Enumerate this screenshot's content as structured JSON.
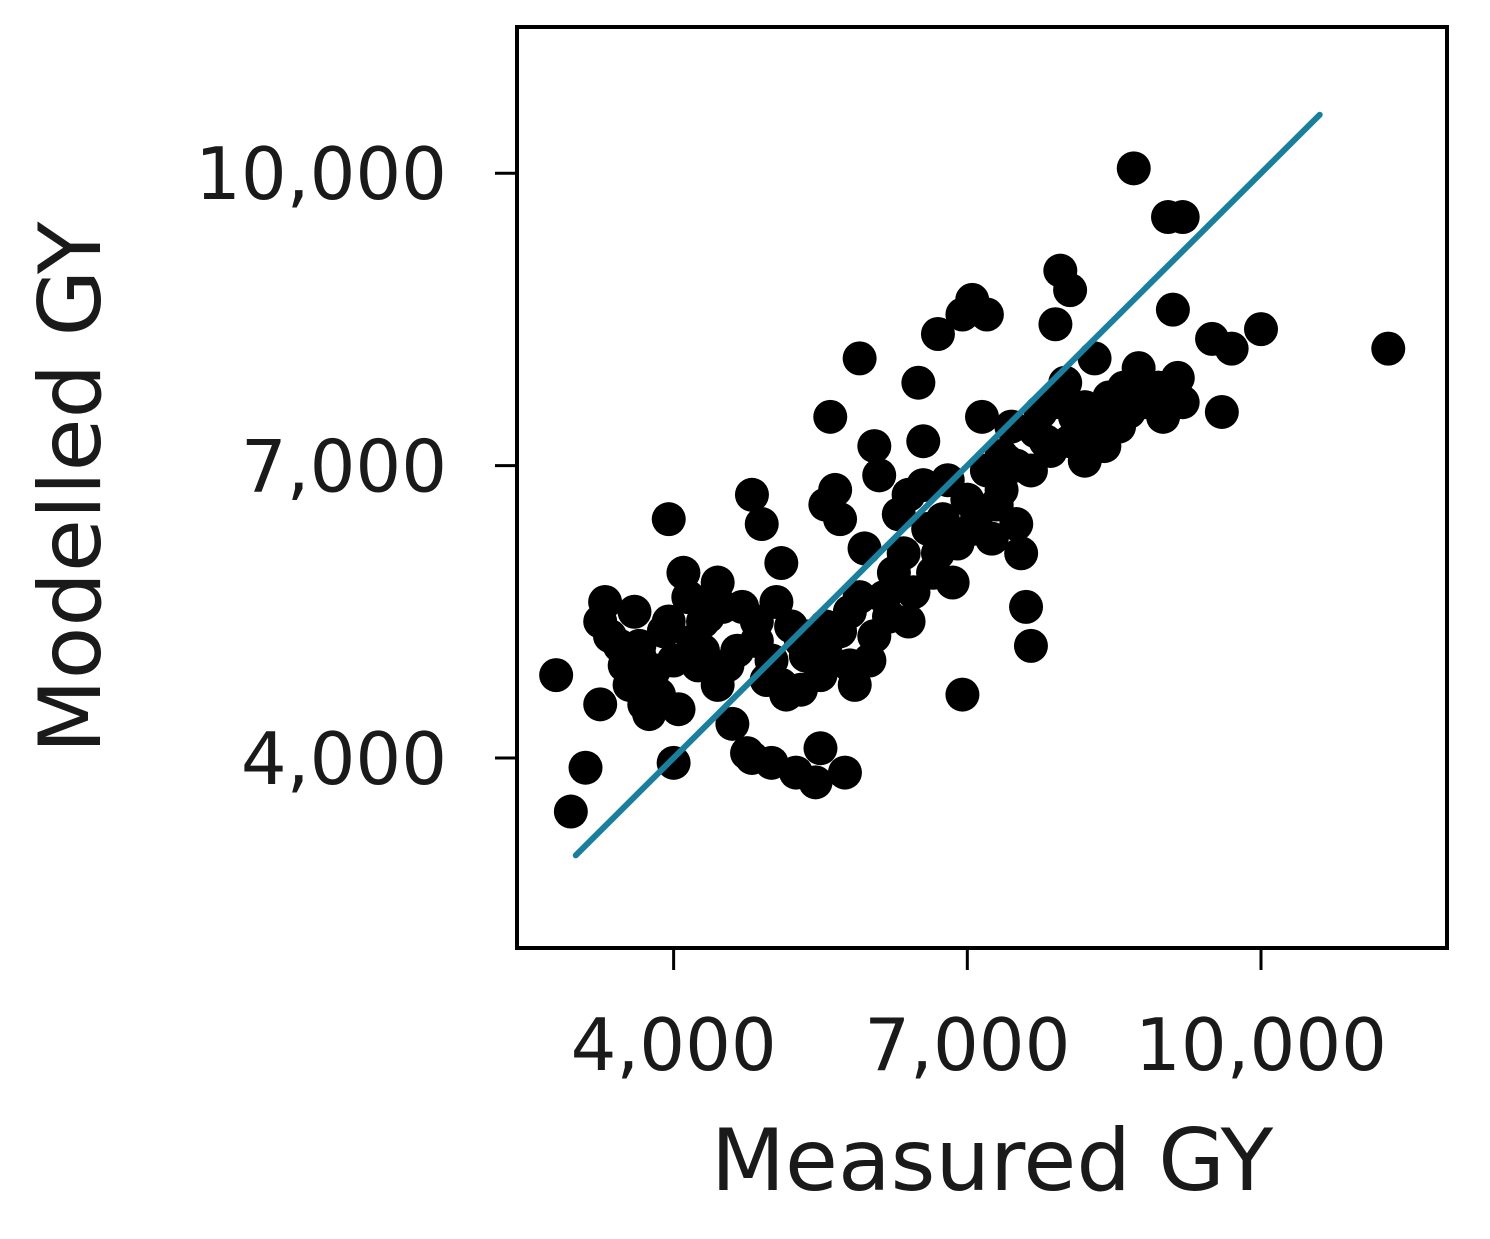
{
  "chart_data": {
    "type": "scatter",
    "title": "",
    "xlabel": "Measured GY",
    "ylabel": "Modelled GY",
    "xlim": [
      2400,
      11900
    ],
    "ylim": [
      2050,
      11500
    ],
    "x_ticks": [
      {
        "value": 4000,
        "label": "4,000"
      },
      {
        "value": 7000,
        "label": "7,000"
      },
      {
        "value": 10000,
        "label": "10,000"
      }
    ],
    "y_ticks": [
      {
        "value": 4000,
        "label": "4,000"
      },
      {
        "value": 7000,
        "label": "7,000"
      },
      {
        "value": 10000,
        "label": "10,000"
      }
    ],
    "grid": false,
    "legend": "none",
    "point_color": "#000000",
    "fit_line": {
      "color": "#1a7f9c",
      "x": [
        3000,
        10600
      ],
      "y": [
        3000,
        10600
      ]
    },
    "series": [
      {
        "points": [
          [
            2800,
            4850
          ],
          [
            2950,
            3450
          ],
          [
            3100,
            3900
          ],
          [
            3250,
            4550
          ],
          [
            3250,
            5400
          ],
          [
            3300,
            5600
          ],
          [
            3350,
            5250
          ],
          [
            3450,
            5150
          ],
          [
            3500,
            4950
          ],
          [
            3550,
            4750
          ],
          [
            3600,
            5500
          ],
          [
            3650,
            5050
          ],
          [
            3700,
            4750
          ],
          [
            3700,
            4550
          ],
          [
            3750,
            4450
          ],
          [
            3800,
            4900
          ],
          [
            3850,
            4650
          ],
          [
            3900,
            5300
          ],
          [
            3950,
            6450
          ],
          [
            4000,
            5000
          ],
          [
            4000,
            3950
          ],
          [
            4050,
            4500
          ],
          [
            4100,
            5900
          ],
          [
            4150,
            5650
          ],
          [
            4200,
            5200
          ],
          [
            4250,
            4950
          ],
          [
            4300,
            5100
          ],
          [
            4350,
            5450
          ],
          [
            4400,
            5600
          ],
          [
            4450,
            4750
          ],
          [
            4500,
            5550
          ],
          [
            4550,
            4950
          ],
          [
            4600,
            4350
          ],
          [
            4650,
            5100
          ],
          [
            4700,
            5550
          ],
          [
            4750,
            4050
          ],
          [
            4800,
            6700
          ],
          [
            4800,
            4000
          ],
          [
            4850,
            5400
          ],
          [
            4900,
            6400
          ],
          [
            4950,
            4800
          ],
          [
            5000,
            5000
          ],
          [
            5000,
            3950
          ],
          [
            5050,
            5600
          ],
          [
            5100,
            4750
          ],
          [
            5150,
            4650
          ],
          [
            5200,
            5350
          ],
          [
            5250,
            3850
          ],
          [
            5300,
            4700
          ],
          [
            5350,
            5050
          ],
          [
            5400,
            5250
          ],
          [
            5450,
            3750
          ],
          [
            5500,
            4100
          ],
          [
            5500,
            4850
          ],
          [
            5550,
            5100
          ],
          [
            5600,
            7500
          ],
          [
            5650,
            6750
          ],
          [
            5700,
            6450
          ],
          [
            5700,
            5300
          ],
          [
            5750,
            3850
          ],
          [
            5800,
            5500
          ],
          [
            5800,
            4950
          ],
          [
            5850,
            4750
          ],
          [
            5900,
            5650
          ],
          [
            5950,
            6150
          ],
          [
            6000,
            5000
          ],
          [
            6050,
            7200
          ],
          [
            6100,
            6900
          ],
          [
            6150,
            5650
          ],
          [
            6200,
            5450
          ],
          [
            6250,
            5900
          ],
          [
            6300,
            6500
          ],
          [
            6350,
            6100
          ],
          [
            6400,
            5400
          ],
          [
            6450,
            5700
          ],
          [
            6500,
            7850
          ],
          [
            6550,
            6800
          ],
          [
            6600,
            6350
          ],
          [
            6650,
            5900
          ],
          [
            6700,
            6100
          ],
          [
            6750,
            6450
          ],
          [
            6800,
            6850
          ],
          [
            6850,
            5800
          ],
          [
            6900,
            6200
          ],
          [
            6950,
            4650
          ],
          [
            7000,
            6650
          ],
          [
            7050,
            6350
          ],
          [
            7100,
            6500
          ],
          [
            7150,
            7500
          ],
          [
            7200,
            6950
          ],
          [
            7250,
            6250
          ],
          [
            7300,
            6600
          ],
          [
            7350,
            6750
          ],
          [
            7400,
            7050
          ],
          [
            7450,
            7400
          ],
          [
            7500,
            6400
          ],
          [
            7550,
            6100
          ],
          [
            7600,
            5550
          ],
          [
            7650,
            5150
          ],
          [
            7700,
            7350
          ],
          [
            7750,
            7550
          ],
          [
            7800,
            7250
          ],
          [
            7850,
            7150
          ],
          [
            7900,
            7650
          ],
          [
            8000,
            7850
          ],
          [
            8050,
            7250
          ],
          [
            8100,
            7500
          ],
          [
            8150,
            7300
          ],
          [
            8200,
            7600
          ],
          [
            8250,
            7150
          ],
          [
            8300,
            8100
          ],
          [
            8350,
            7400
          ],
          [
            8400,
            7200
          ],
          [
            8450,
            7700
          ],
          [
            8500,
            7550
          ],
          [
            8550,
            7400
          ],
          [
            8600,
            7800
          ],
          [
            8650,
            7550
          ],
          [
            8700,
            10050
          ],
          [
            8750,
            7900
          ],
          [
            8800,
            7650
          ],
          [
            8900,
            7700
          ],
          [
            8950,
            7800
          ],
          [
            9000,
            7500
          ],
          [
            9050,
            9550
          ],
          [
            9100,
            8600
          ],
          [
            9150,
            7900
          ],
          [
            9200,
            7650
          ],
          [
            9500,
            8300
          ],
          [
            9600,
            7550
          ],
          [
            9700,
            8200
          ],
          [
            10000,
            8400
          ],
          [
            11300,
            8200
          ],
          [
            5300,
            5200
          ],
          [
            6850,
            6300
          ],
          [
            7350,
            7100
          ],
          [
            8200,
            7050
          ],
          [
            7050,
            8700
          ],
          [
            6950,
            8550
          ],
          [
            6700,
            8350
          ],
          [
            7200,
            8550
          ],
          [
            5550,
            6600
          ],
          [
            4450,
            5800
          ],
          [
            3650,
            5150
          ],
          [
            5900,
            8100
          ],
          [
            7900,
            8450
          ],
          [
            8050,
            8800
          ],
          [
            9200,
            9550
          ],
          [
            4850,
            5200
          ],
          [
            6400,
            6700
          ],
          [
            6050,
            5250
          ],
          [
            7650,
            6950
          ],
          [
            8750,
            8000
          ],
          [
            5100,
            6000
          ],
          [
            7950,
            9000
          ],
          [
            6550,
            7250
          ],
          [
            7500,
            7000
          ],
          [
            3950,
            5400
          ],
          [
            4300,
            5400
          ],
          [
            5550,
            5350
          ]
        ]
      }
    ]
  }
}
